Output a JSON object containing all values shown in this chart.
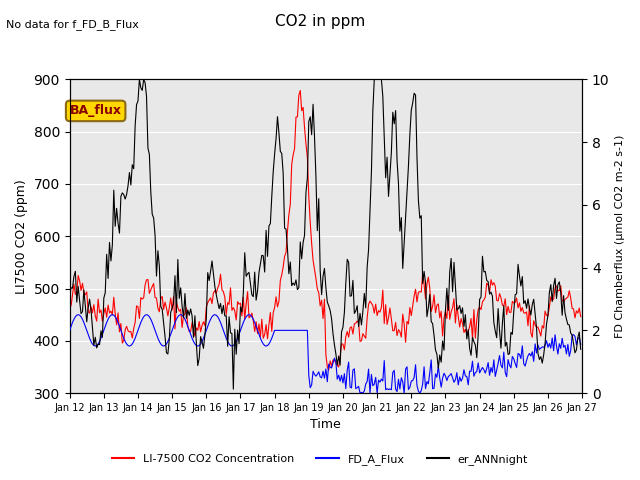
{
  "title": "CO2 in ppm",
  "top_left_text": "No data for f_FD_B_Flux",
  "ylabel_left": "LI7500 CO2 (ppm)",
  "ylabel_right": "FD Chamberflux (μmol CO2 m-2 s-1)",
  "xlabel": "Time",
  "ylim_left": [
    300,
    900
  ],
  "ylim_right": [
    0.0,
    10.0
  ],
  "xlim": [
    0,
    360
  ],
  "n_points": 360,
  "background_color": "#e8e8e8",
  "legend_entries": [
    "LI-7500 CO2 Concentration",
    "FD_A_Flux",
    "er_ANNnight"
  ],
  "legend_colors": [
    "red",
    "blue",
    "black"
  ],
  "annotation_text": "BA_flux",
  "annotation_color": "#cc9900",
  "xtick_labels": [
    "Jan 12",
    "Jan 13",
    "Jan 14",
    "Jan 15",
    "Jan 16",
    "Jan 17",
    "Jan 18",
    "Jan 19",
    "Jan 20",
    "Jan 21",
    "Jan 22",
    "Jan 23",
    "Jan 24",
    "Jan 25",
    "Jan 26",
    "Jan 27"
  ],
  "xtick_positions": [
    0,
    24,
    48,
    72,
    96,
    120,
    144,
    168,
    192,
    216,
    240,
    264,
    288,
    312,
    336,
    360
  ]
}
